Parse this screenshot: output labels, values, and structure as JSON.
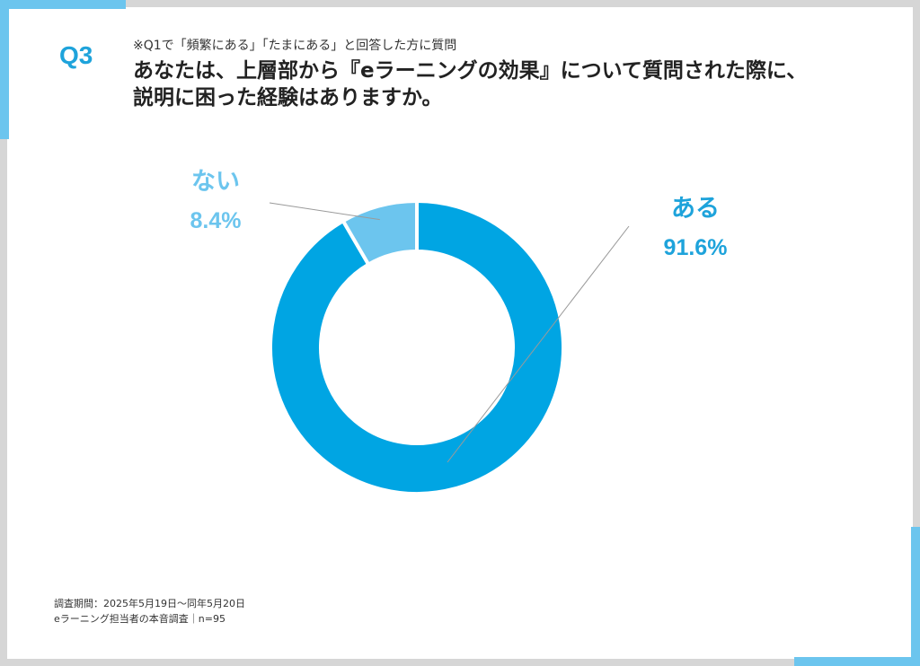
{
  "header": {
    "q_label": "Q3",
    "note": "※Q1で「頻繁にある」「たまにある」と回答した方に質問",
    "question_line1": "あなたは、上層部から『eラーニングの効果』について質問された際に、",
    "question_line2": "説明に困った経験はありますか。"
  },
  "chart_data": {
    "type": "pie",
    "donut": true,
    "slices": [
      {
        "label": "ある",
        "value": 91.6,
        "value_label": "91.6%",
        "color": "#00a5e3"
      },
      {
        "label": "ない",
        "value": 8.4,
        "value_label": "8.4%",
        "color": "#6cc5ee"
      }
    ],
    "legend": "none"
  },
  "footer": {
    "line1": "調査期間：2025年5月19日〜同年5月20日",
    "line2": "eラーニング担当者の本音調査｜n=95"
  }
}
